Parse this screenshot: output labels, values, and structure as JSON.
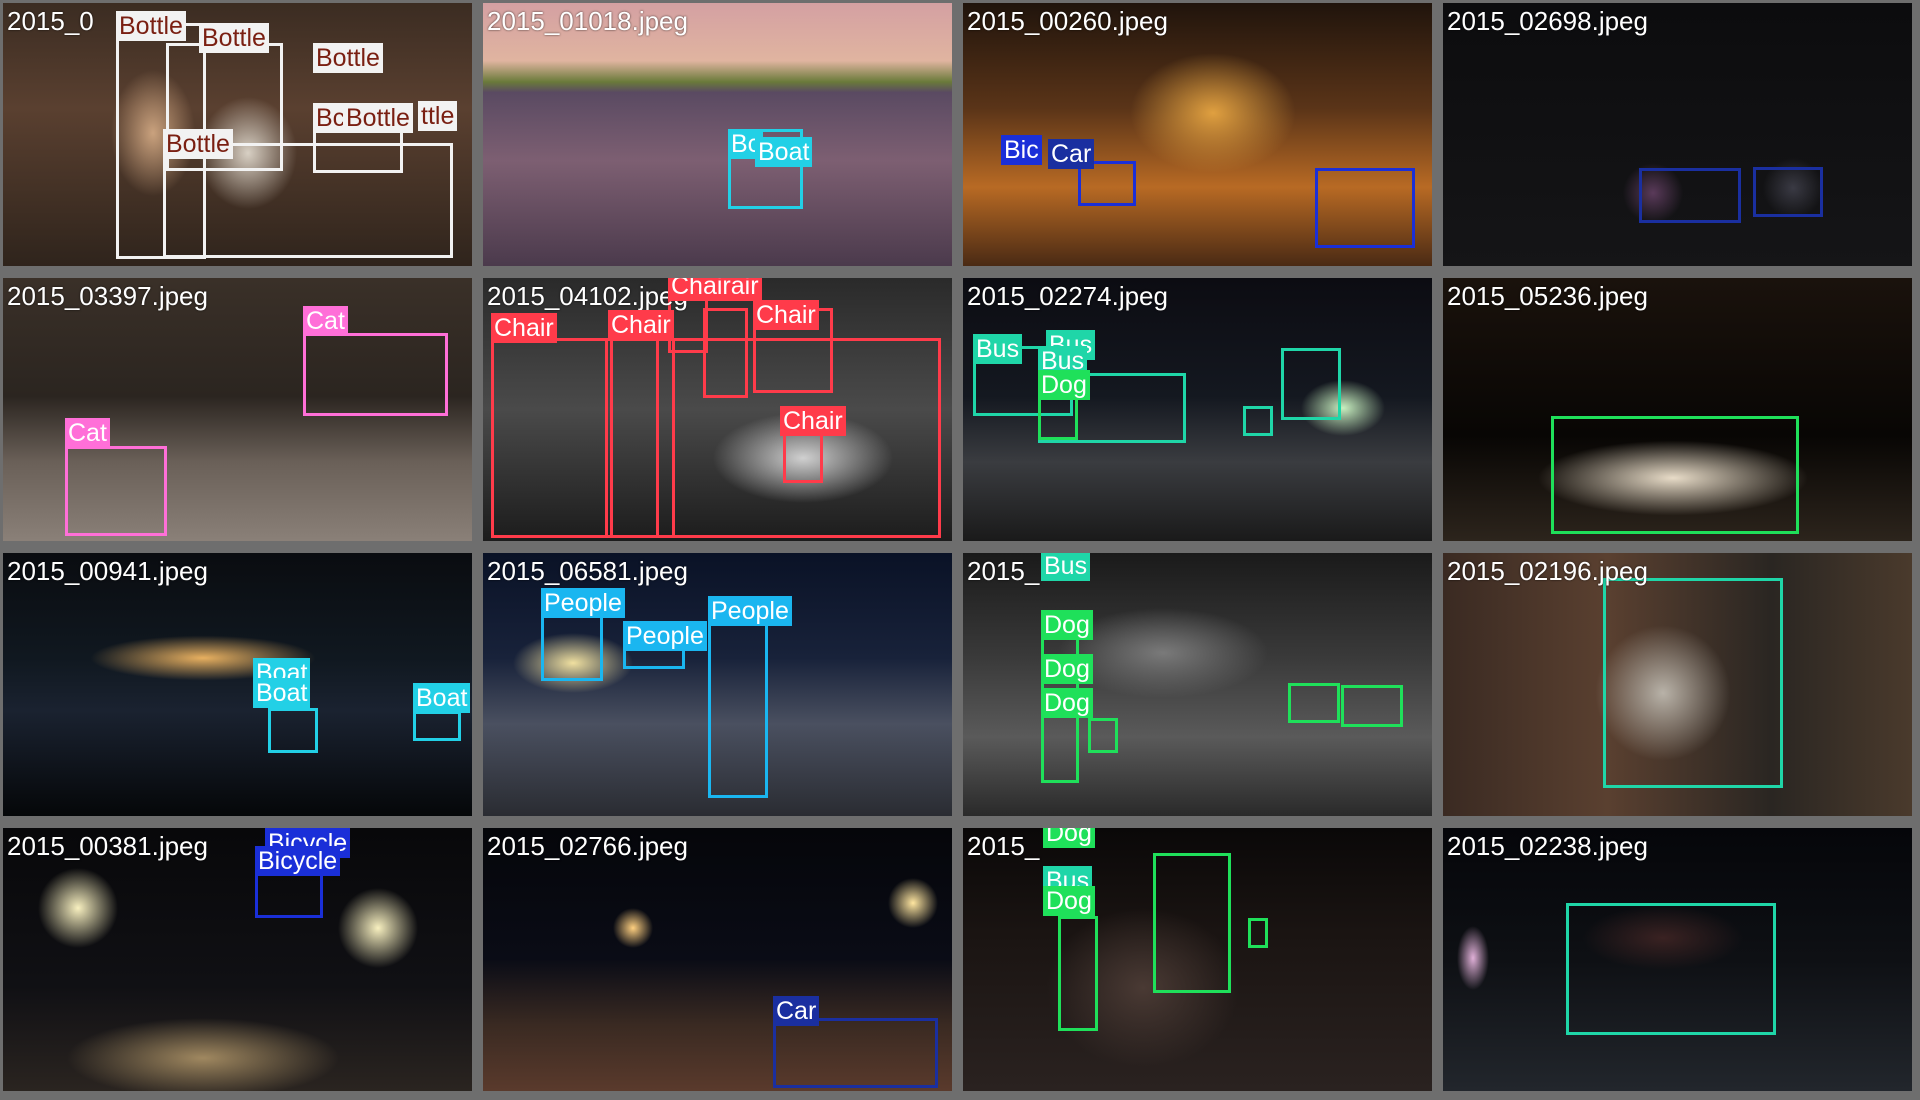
{
  "colors": {
    "Bottle": "#f2f2f2",
    "Boat": "#22d0e6",
    "Bicycle": "#1a2fd8",
    "Car": "#1a2fa0",
    "Cat": "#ff6fd8",
    "Chair": "#ff3b4a",
    "Bus": "#1fd6a8",
    "Dog": "#1fe05a",
    "People": "#1ab6f0"
  },
  "tiles": [
    {
      "file": "2015_0",
      "scene": "bar interior with people and shelves of bottles",
      "labels": [
        "Bottle",
        "Bottle",
        "Bottle",
        "Bottle",
        "Bc",
        "Bottle",
        "ttle"
      ]
    },
    {
      "file": "2015_01018.jpeg",
      "scene": "lake at sunset with a small boat",
      "labels": [
        "Bc",
        "Boat"
      ]
    },
    {
      "file": "2015_00260.jpeg",
      "scene": "night street with lit shops and parked bicycles",
      "labels": [
        "Bic",
        "Car"
      ]
    },
    {
      "file": "2015_02698.jpeg",
      "scene": "very dark road with two cars",
      "labels": []
    },
    {
      "file": "2015_03397.jpeg",
      "scene": "two cats near a guardrail at night",
      "labels": [
        "Cat",
        "Cat"
      ]
    },
    {
      "file": "2015_04102.jpeg",
      "scene": "dim office with desks and chairs",
      "labels": [
        "Chairair",
        "Chair",
        "Chair",
        "Chair",
        "Chair"
      ]
    },
    {
      "file": "2015_02274.jpeg",
      "scene": "wet city street with buses at night",
      "labels": [
        "Bus",
        "Bus",
        "Bus",
        "Dog"
      ]
    },
    {
      "file": "2015_05236.jpeg",
      "scene": "dog sleeping on floor in dark room",
      "labels": []
    },
    {
      "file": "2015_00941.jpeg",
      "scene": "harbor at night with boats and lights",
      "labels": [
        "Boat",
        "Boat",
        "Boat"
      ]
    },
    {
      "file": "2015_06581.jpeg",
      "scene": "rainy plaza with a bus and people",
      "labels": [
        "People",
        "People",
        "People"
      ]
    },
    {
      "file": "2015_",
      "scene": "black and white night road with dogs and cars",
      "labels": [
        "Bus",
        "Dog",
        "Dog",
        "Dog"
      ]
    },
    {
      "file": "2015_02196.jpeg",
      "scene": "parked bus by a brick wall at night",
      "labels": []
    },
    {
      "file": "2015_00381.jpeg",
      "scene": "floodlights over a dirt bike track",
      "labels": [
        "Bicycle",
        "Bicycle"
      ]
    },
    {
      "file": "2015_02766.jpeg",
      "scene": "night road with street lights and a car",
      "labels": [
        "Car"
      ]
    },
    {
      "file": "2015_",
      "scene": "person skateboarding with a dog at night",
      "labels": [
        "Dog",
        "Bus",
        "Dog"
      ]
    },
    {
      "file": "2015_02238.jpeg",
      "scene": "bus at a dark bus stop",
      "labels": []
    }
  ]
}
